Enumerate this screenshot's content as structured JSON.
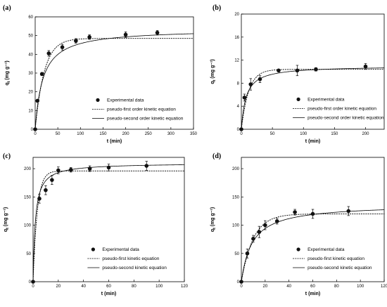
{
  "figure": {
    "panels": [
      "(a)",
      "(b)",
      "(c)",
      "(d)"
    ]
  },
  "chart_data": [
    {
      "panel": "(a)",
      "type": "scatter",
      "xlabel": "t (min)",
      "ylabel": "q",
      "ylabel_sub": "t",
      "ylabel_unit": "(mg g⁻¹)",
      "xlim": [
        0,
        350
      ],
      "ylim": [
        0,
        60
      ],
      "xticks": [
        0,
        50,
        100,
        150,
        200,
        250,
        300,
        350
      ],
      "yticks": [
        0,
        10,
        20,
        30,
        40,
        50,
        60
      ],
      "grid": false,
      "legend_position": "bottom-right",
      "series": [
        {
          "name": "Experimental data",
          "kind": "points",
          "x": [
            0,
            5,
            15,
            30,
            60,
            90,
            120,
            200,
            270
          ],
          "y": [
            0,
            15.2,
            29.5,
            40.5,
            43.8,
            47.2,
            49.2,
            50.5,
            51.5
          ],
          "err": [
            0,
            0.5,
            0.8,
            1.5,
            1.5,
            1.2,
            1.2,
            1.5,
            1.2
          ]
        },
        {
          "name": "pseudo-first order kinetic equation",
          "kind": "dashed",
          "model": "pfo",
          "qe": 48.5,
          "k": 0.05
        },
        {
          "name": "pseudo-second order kinetic equation",
          "kind": "solid",
          "model": "pso",
          "qe": 53.5,
          "k": 0.0011
        }
      ]
    },
    {
      "panel": "(b)",
      "type": "scatter",
      "xlabel": "t (min)",
      "ylabel": "q",
      "ylabel_sub": "t",
      "ylabel_unit": "(mg g⁻¹)",
      "xlim": [
        0,
        230
      ],
      "ylim": [
        0,
        20
      ],
      "xticks": [
        0,
        50,
        100,
        150,
        200
      ],
      "yticks": [
        0,
        4,
        8,
        12,
        16,
        20
      ],
      "grid": false,
      "legend_position": "bottom-right",
      "series": [
        {
          "name": "Experimental data",
          "kind": "points",
          "x": [
            0,
            5,
            15,
            30,
            60,
            90,
            120,
            200
          ],
          "y": [
            0,
            5.5,
            7.8,
            8.7,
            10.2,
            10.2,
            10.4,
            10.9
          ],
          "err": [
            0,
            0.6,
            1.0,
            0.6,
            0.2,
            0.9,
            0.3,
            0.5
          ]
        },
        {
          "name": "pseudo-first order kinetic equation",
          "kind": "dashed",
          "model": "pfo",
          "qe": 10.4,
          "k": 0.085
        },
        {
          "name": "pseudo-second order kinetic equation",
          "kind": "solid",
          "model": "pso",
          "qe": 11.0,
          "k": 0.012
        }
      ]
    },
    {
      "panel": "(c)",
      "type": "scatter",
      "xlabel": "t (min)",
      "ylabel": "q",
      "ylabel_sub": "t",
      "ylabel_unit": "(mg g⁻¹)",
      "xlim": [
        0,
        120
      ],
      "ylim": [
        0,
        220
      ],
      "xticks": [
        0,
        20,
        40,
        60,
        80,
        100,
        120
      ],
      "yticks": [
        0,
        50,
        100,
        150,
        200
      ],
      "grid": false,
      "legend_position": "bottom-right",
      "series": [
        {
          "name": "Experimental data",
          "kind": "points",
          "x": [
            0,
            5,
            10,
            15,
            20,
            30,
            45,
            60,
            90
          ],
          "y": [
            0,
            147,
            162,
            180,
            197,
            198,
            200,
            202,
            205
          ],
          "err": [
            0,
            8,
            8,
            8,
            6,
            4,
            5,
            6,
            8
          ]
        },
        {
          "name": "pseudo-first kinetic equation",
          "kind": "dashed",
          "model": "pfo",
          "qe": 196,
          "k": 0.3
        },
        {
          "name": "pseudo-second kinetic equation",
          "kind": "solid",
          "model": "pso",
          "qe": 210,
          "k": 0.0027
        }
      ]
    },
    {
      "panel": "(d)",
      "type": "scatter",
      "xlabel": "t (min)",
      "ylabel": "q",
      "ylabel_sub": "t",
      "ylabel_unit": "(mg g⁻¹)",
      "xlim": [
        0,
        120
      ],
      "ylim": [
        0,
        220
      ],
      "xticks": [
        0,
        20,
        40,
        60,
        80,
        100,
        120
      ],
      "yticks": [
        0,
        50,
        100,
        150,
        200
      ],
      "grid": false,
      "legend_position": "bottom-right",
      "series": [
        {
          "name": "Experimental data",
          "kind": "points",
          "x": [
            0,
            5,
            10,
            15,
            20,
            30,
            45,
            60,
            90
          ],
          "y": [
            0,
            50,
            76,
            88,
            100,
            107,
            123,
            120,
            125
          ],
          "err": [
            0,
            8,
            6,
            10,
            8,
            5,
            5,
            8,
            8
          ]
        },
        {
          "name": "pseudo-first kinetic equation",
          "kind": "dashed",
          "model": "pfo",
          "qe": 120,
          "k": 0.1
        },
        {
          "name": "pseudo-second kinetic equation",
          "kind": "solid",
          "model": "pso",
          "qe": 137,
          "k": 0.0008
        }
      ]
    }
  ]
}
